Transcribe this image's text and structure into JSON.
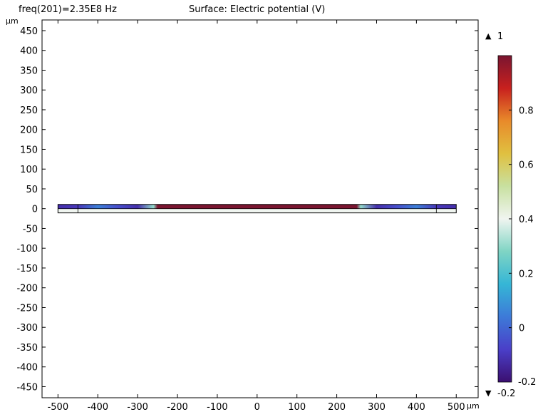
{
  "header": {
    "parameter_text": "freq(201)=2.35E8 Hz",
    "plot_title": "Surface: Electric potential (V)"
  },
  "chart_data": {
    "type": "heatmap",
    "title": "Surface: Electric potential (V)",
    "xlabel": "µm",
    "ylabel": "µm",
    "xlim": [
      -540,
      555
    ],
    "ylim": [
      -478,
      477
    ],
    "x_ticks": [
      -500,
      -400,
      -300,
      -200,
      -100,
      0,
      100,
      200,
      300,
      400,
      500
    ],
    "y_ticks": [
      450,
      400,
      350,
      300,
      250,
      200,
      150,
      100,
      50,
      0,
      -50,
      -100,
      -150,
      -200,
      -250,
      -300,
      -350,
      -400,
      -450
    ],
    "grid": false,
    "domain": {
      "x": [
        -500,
        500
      ],
      "layers": [
        {
          "y": [
            0,
            8
          ],
          "note_values": "upper layer colored by potential"
        },
        {
          "y": [
            -8,
            0
          ],
          "note_values": "lower layer near zero"
        }
      ],
      "internal_boundaries_x": [
        -450,
        450
      ]
    },
    "profile": {
      "x": [
        -500,
        -450,
        -400,
        -350,
        -300,
        -260,
        -250,
        -200,
        -100,
        0,
        100,
        200,
        250,
        260,
        300,
        350,
        400,
        450,
        500
      ],
      "upper_layer_potential": [
        -0.12,
        -0.1,
        0.05,
        -0.05,
        -0.12,
        0.3,
        1.0,
        1.0,
        1.0,
        1.0,
        1.0,
        1.0,
        1.0,
        0.3,
        -0.12,
        -0.05,
        0.05,
        -0.1,
        -0.12
      ],
      "lower_layer_potential": [
        0.4,
        0.4,
        0.4,
        0.4,
        0.4,
        0.4,
        0.4,
        0.4,
        0.4,
        0.4,
        0.4,
        0.4,
        0.4,
        0.4,
        0.4,
        0.4,
        0.4,
        0.4,
        0.4
      ]
    },
    "colorbar": {
      "min": -0.2,
      "max": 1,
      "ticks": [
        "0.8",
        "0.6",
        "0.4",
        "0.2",
        "0"
      ],
      "max_label": "1",
      "min_label": "-0.2",
      "colors": [
        "#3b0f70",
        "#4a3fc8",
        "#3d7ad8",
        "#35b6d6",
        "#7fd4c4",
        "#f0f5f0",
        "#c8e0a0",
        "#e0c040",
        "#e88a2a",
        "#c8201e",
        "#7a1530"
      ],
      "max_marker": "▲",
      "min_marker": "▼"
    }
  }
}
